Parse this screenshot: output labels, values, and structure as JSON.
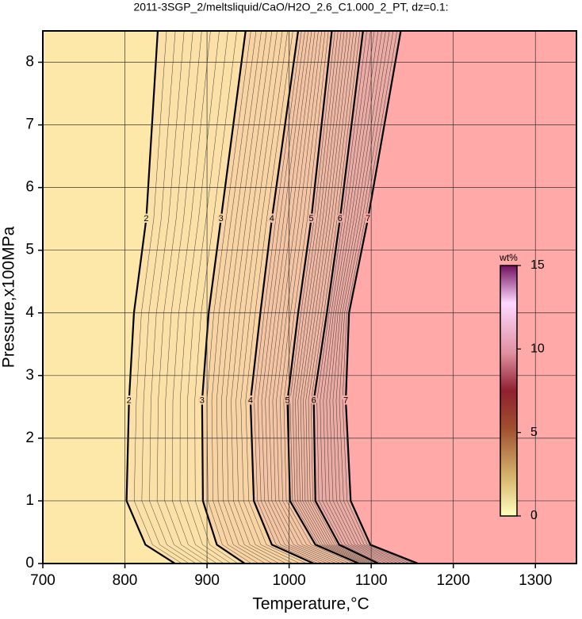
{
  "chart_data": {
    "type": "contour",
    "title": "2011-3SGP_2/meltsliquid/CaO/H2O_2.6_C1.000_2_PT, dz=0.1:",
    "xlabel": "Temperature,°C",
    "ylabel": "Pressure,x100MPa",
    "xlim": [
      700,
      1350
    ],
    "xticks": [
      700,
      800,
      900,
      1000,
      1100,
      1200,
      1300
    ],
    "ylim": [
      0,
      8.5
    ],
    "yticks": [
      0,
      1,
      2,
      3,
      4,
      5,
      6,
      7,
      8
    ],
    "grid": true,
    "background_color": "#fde8a9",
    "contours": [
      {
        "level": 2,
        "color": "#fbe0a7",
        "x": [
          840,
          826,
          811,
          805,
          802,
          825,
          861
        ],
        "y": [
          8.5,
          5.5,
          4,
          2.6,
          1,
          0.3,
          0
        ]
      },
      {
        "level": 3,
        "color": "#f8d3a4",
        "x": [
          947,
          917,
          902,
          894,
          895,
          912,
          946
        ],
        "y": [
          8.5,
          5.5,
          4,
          2.6,
          1,
          0.3,
          0
        ]
      },
      {
        "level": 4,
        "color": "#f4c5a4",
        "x": [
          1011,
          979,
          965,
          953,
          957,
          979,
          1030
        ],
        "y": [
          8.5,
          5.5,
          4,
          2.6,
          1,
          0.3,
          0
        ]
      },
      {
        "level": 5,
        "color": "#efb8a4",
        "x": [
          1052,
          1027,
          1011,
          998,
          1001,
          1032,
          1085
        ],
        "y": [
          8.5,
          5.5,
          4,
          2.6,
          1,
          0.3,
          0
        ]
      },
      {
        "level": 6,
        "color": "#eaaca5",
        "x": [
          1090,
          1062,
          1046,
          1030,
          1032,
          1061,
          1109
        ],
        "y": [
          8.5,
          5.5,
          4,
          2.6,
          1,
          0.3,
          0
        ]
      },
      {
        "level": 7,
        "color": "#ffa9a8",
        "x": [
          1136,
          1096,
          1073,
          1069,
          1075,
          1099,
          1157
        ],
        "y": [
          8.5,
          5.5,
          4,
          2.6,
          1,
          0.3,
          0
        ]
      }
    ],
    "colorbar": {
      "label": "wt%",
      "lim": [
        0,
        15
      ],
      "ticks": [
        0,
        5,
        10,
        15
      ]
    }
  }
}
